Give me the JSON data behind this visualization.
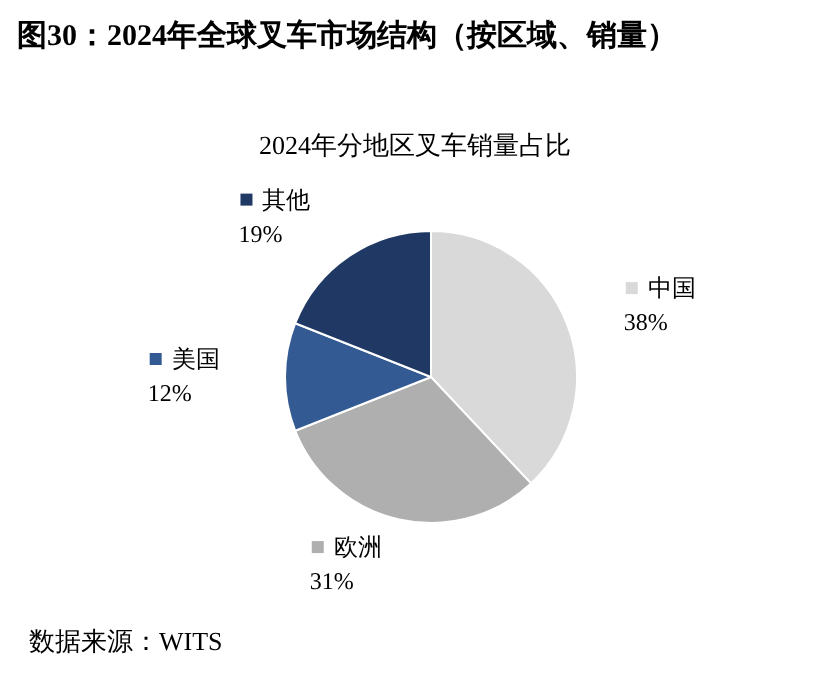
{
  "chart_data": {
    "type": "pie",
    "title": "图30：2024年全球叉车市场结构（按区域、销量）",
    "subtitle": "2024年分地区叉车销量占比",
    "categories": [
      "中国",
      "欧洲",
      "美国",
      "其他"
    ],
    "values": [
      38,
      31,
      12,
      19
    ],
    "value_labels": [
      "38%",
      "31%",
      "12%",
      "19%"
    ],
    "colors": [
      "#d9d9d9",
      "#afafaf",
      "#335a93",
      "#1f3864"
    ],
    "annotations": [
      "数据来源：WITS"
    ],
    "legend": "right"
  }
}
